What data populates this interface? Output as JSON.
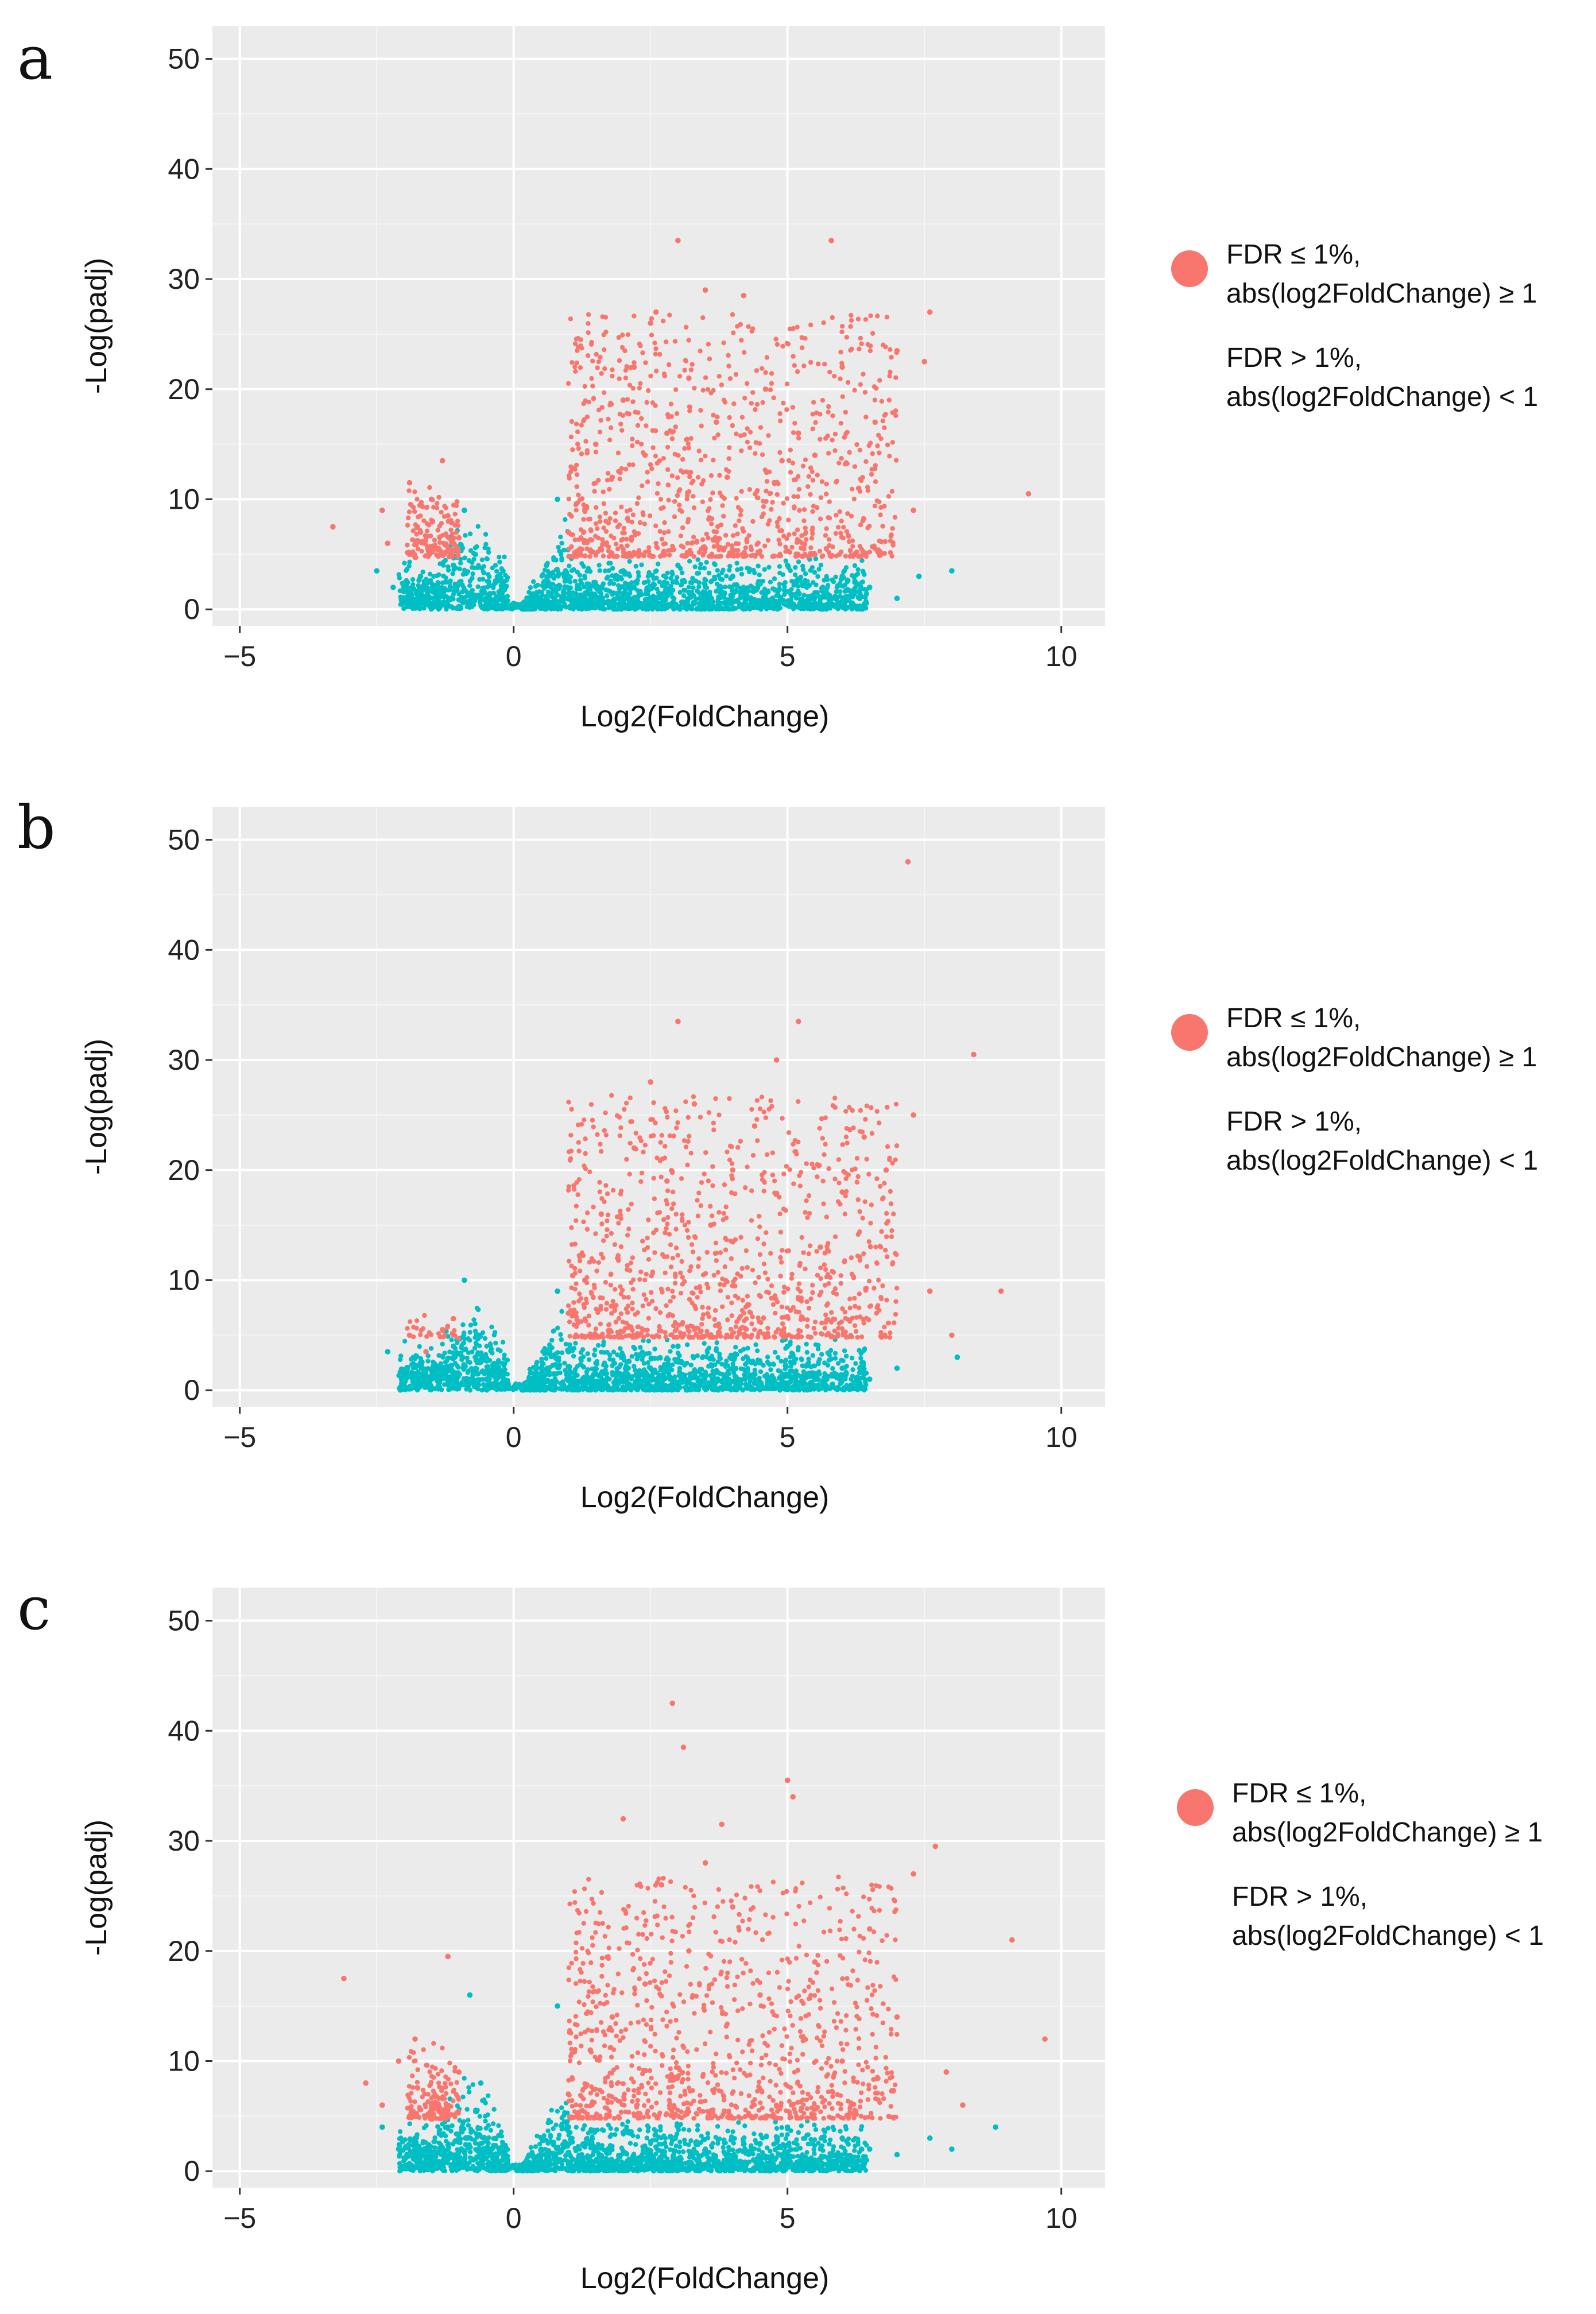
{
  "colors": {
    "significant": "#F8766D",
    "nonsignificant": "#00BFC4",
    "panel_background": "#EBEBEB",
    "grid": "#FFFFFF"
  },
  "chart_data": [
    {
      "type": "scatter",
      "panel_label": "a",
      "xlabel": "Log2(FoldChange)",
      "ylabel": "-Log(padj)",
      "xlim": [
        -5.5,
        10.8
      ],
      "ylim": [
        -1.5,
        53
      ],
      "x_ticks": [
        -5,
        0,
        5,
        10
      ],
      "x_tick_labels": [
        "−5",
        "0",
        "5",
        "10"
      ],
      "y_ticks": [
        0,
        10,
        20,
        30,
        40,
        50
      ],
      "y_tick_labels": [
        "0",
        "10",
        "20",
        "30",
        "40",
        "50"
      ],
      "grid": true,
      "legend_position": "right",
      "legend": [
        {
          "line1": "FDR ≤ 1%,",
          "line2": "abs(log2FoldChange) ≥  1",
          "color": "#F8766D"
        },
        {
          "line1": "FDR > 1%,",
          "line2": "abs(log2FoldChange) < 1",
          "color": "#00BFC4"
        }
      ],
      "series": [
        {
          "name": "FDR ≤ 1%, abs(log2FoldChange) ≥  1",
          "x": [
            -3.3,
            -2.4,
            -2.3,
            -1.9,
            -1.7,
            -1.5,
            -1.3,
            -1.2,
            -1.0,
            1.0,
            1.3,
            1.5,
            1.8,
            2.0,
            2.2,
            2.4,
            2.5,
            2.6,
            2.8,
            3.0,
            3.2,
            3.5,
            3.7,
            3.9,
            4.2,
            4.6,
            4.9,
            5.2,
            5.5,
            5.8,
            6.0,
            6.3,
            6.6,
            7.0,
            7.3,
            7.5,
            7.6,
            9.4
          ],
          "y": [
            7.5,
            9,
            6,
            11.5,
            7,
            10,
            13.5,
            8.5,
            6.5,
            7,
            9,
            15,
            12,
            19,
            22,
            14,
            26,
            27,
            16,
            33.5,
            21,
            29,
            17,
            12,
            28.5,
            20,
            13.5,
            16,
            14,
            33.5,
            22,
            11,
            17,
            23.5,
            9,
            22.5,
            27,
            10.5
          ]
        },
        {
          "name": "FDR > 1%, abs(log2FoldChange) < 1",
          "x": [
            -2.5,
            -2.2,
            -2.0,
            -1.7,
            -1.4,
            -1.1,
            -0.9,
            -0.7,
            -0.5,
            -0.3,
            0.2,
            0.4,
            0.6,
            0.8,
            1.0,
            1.5,
            2.0,
            2.5,
            3.0,
            3.5,
            4.0,
            4.5,
            5.0,
            5.5,
            6.0,
            6.5,
            7.0,
            7.4,
            8.0
          ],
          "y": [
            3.5,
            2,
            1,
            3,
            2,
            4,
            9,
            5,
            1,
            0.2,
            0.2,
            1,
            4,
            10,
            3,
            2,
            3.5,
            2,
            4,
            1.5,
            3,
            2.5,
            4,
            1.5,
            3,
            2,
            1,
            3,
            3.5
          ]
        }
      ]
    },
    {
      "type": "scatter",
      "panel_label": "b",
      "xlabel": "Log2(FoldChange)",
      "ylabel": "-Log(padj)",
      "xlim": [
        -5.5,
        10.8
      ],
      "ylim": [
        -1.5,
        53
      ],
      "x_ticks": [
        -5,
        0,
        5,
        10
      ],
      "x_tick_labels": [
        "−5",
        "0",
        "5",
        "10"
      ],
      "y_ticks": [
        0,
        10,
        20,
        30,
        40,
        50
      ],
      "y_tick_labels": [
        "0",
        "10",
        "20",
        "30",
        "40",
        "50"
      ],
      "grid": true,
      "legend_position": "right",
      "legend": [
        {
          "line1": "FDR ≤ 1%,",
          "line2": "abs(log2FoldChange) ≥ 1",
          "color": "#F8766D"
        },
        {
          "line1": "FDR > 1%,",
          "line2": "abs(log2FoldChange) < 1",
          "color": "#00BFC4"
        }
      ],
      "series": [
        {
          "name": "FDR ≤ 1%, abs(log2FoldChange) ≥ 1",
          "x": [
            -1.9,
            -1.6,
            -1.3,
            -1.1,
            1.0,
            1.3,
            1.6,
            1.9,
            2.2,
            2.5,
            2.8,
            3.0,
            3.3,
            3.6,
            4.0,
            4.4,
            4.8,
            5.2,
            5.6,
            6.0,
            6.4,
            6.8,
            7.2,
            7.3,
            7.6,
            8.0,
            8.4,
            8.9
          ],
          "y": [
            5,
            3.5,
            5.5,
            6.5,
            7,
            10,
            16,
            12,
            22,
            28,
            19,
            33.5,
            26,
            15,
            20,
            24,
            30,
            33.5,
            13,
            18,
            23,
            20,
            48,
            25,
            9,
            5,
            30.5,
            9
          ]
        },
        {
          "name": "FDR > 1%, abs(log2FoldChange) < 1",
          "x": [
            -2.3,
            -2.0,
            -1.7,
            -1.4,
            -1.1,
            -0.9,
            -0.7,
            -0.5,
            0.2,
            0.5,
            0.8,
            1.0,
            1.5,
            2.0,
            2.5,
            3.0,
            3.5,
            4.0,
            4.5,
            5.0,
            5.5,
            6.0,
            6.5,
            7.0,
            8.1
          ],
          "y": [
            3.5,
            1.5,
            2.5,
            2,
            4,
            10,
            3,
            1,
            0.3,
            2,
            9,
            3.5,
            1.5,
            3,
            2,
            4,
            1.5,
            3,
            2.5,
            4,
            1,
            2,
            1,
            2,
            3
          ]
        }
      ]
    },
    {
      "type": "scatter",
      "panel_label": "c",
      "xlabel": "Log2(FoldChange)",
      "ylabel": "-Log(padj)",
      "xlim": [
        -5.5,
        10.8
      ],
      "ylim": [
        -1.5,
        53
      ],
      "x_ticks": [
        -5,
        0,
        5,
        10
      ],
      "x_tick_labels": [
        "−5",
        "0",
        "5",
        "10"
      ],
      "y_ticks": [
        0,
        10,
        20,
        30,
        40,
        50
      ],
      "y_tick_labels": [
        "0",
        "10",
        "20",
        "30",
        "40",
        "50"
      ],
      "grid": true,
      "legend_position": "right",
      "legend": [
        {
          "line1": "FDR ≤ 1%,",
          "line2": "abs(log2FoldChange) ≥ 1",
          "color": "#F8766D"
        },
        {
          "line1": "FDR > 1%,",
          "line2": "abs(log2FoldChange) < 1",
          "color": "#00BFC4"
        }
      ],
      "series": [
        {
          "name": "FDR ≤ 1%, abs(log2FoldChange) ≥ 1",
          "x": [
            -3.1,
            -2.7,
            -2.4,
            -2.1,
            -1.8,
            -1.5,
            -1.2,
            -1.0,
            1.0,
            1.4,
            1.8,
            2.0,
            2.4,
            2.7,
            2.9,
            3.1,
            3.2,
            3.5,
            3.8,
            4.0,
            4.5,
            5.0,
            5.1,
            5.5,
            6.0,
            6.5,
            7.0,
            7.3,
            7.7,
            7.9,
            8.2,
            9.1,
            9.7
          ],
          "y": [
            17.5,
            8,
            6,
            10,
            12,
            6,
            19.5,
            9,
            7,
            11,
            14,
            32,
            17,
            26,
            42.5,
            38.5,
            20,
            28,
            31.5,
            24,
            16,
            35.5,
            34,
            19,
            10,
            22,
            14,
            27,
            29.5,
            9,
            6,
            21,
            12
          ]
        },
        {
          "name": "FDR > 1%, abs(log2FoldChange) < 1",
          "x": [
            -2.4,
            -2.1,
            -1.8,
            -1.5,
            -1.2,
            -1.0,
            -0.8,
            -0.6,
            -0.4,
            0.2,
            0.5,
            0.8,
            1.0,
            1.5,
            2.0,
            2.5,
            3.0,
            3.5,
            4.0,
            4.5,
            5.0,
            5.5,
            6.0,
            6.5,
            7.0,
            7.6,
            8.0,
            8.8
          ],
          "y": [
            4,
            2,
            3,
            1.5,
            4,
            3,
            16,
            8,
            2,
            0.3,
            2,
            15,
            4,
            2,
            3.5,
            1.5,
            4,
            2,
            3,
            2.5,
            4,
            1,
            3,
            2,
            1.5,
            3,
            2,
            4
          ]
        }
      ]
    }
  ]
}
